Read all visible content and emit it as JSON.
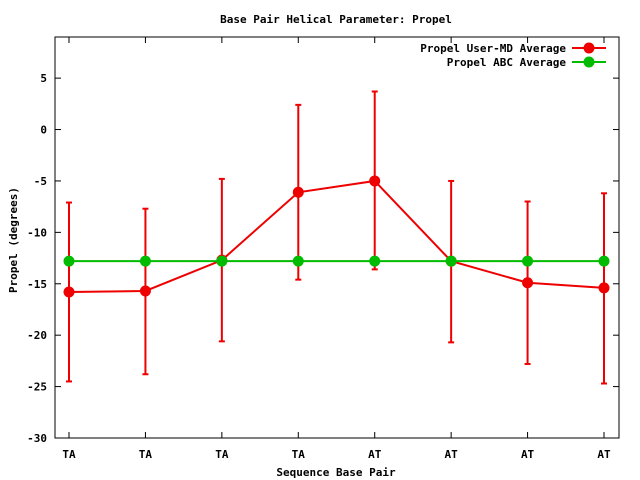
{
  "chart_data": {
    "type": "line",
    "title": "Base Pair Helical Parameter: Propel",
    "xlabel": "Sequence Base Pair",
    "ylabel": "Propel (degrees)",
    "categories": [
      "TA",
      "TA",
      "TA",
      "TA",
      "AT",
      "AT",
      "AT",
      "AT"
    ],
    "ylim": [
      -30,
      9
    ],
    "yticks": [
      5,
      0,
      -5,
      -10,
      -15,
      -20,
      -25,
      -30
    ],
    "grid": false,
    "legend_position": "top-right",
    "series": [
      {
        "name": "Propel User-MD Average",
        "color": "#ee0000",
        "values": [
          -15.8,
          -15.7,
          -12.7,
          -6.1,
          -5.0,
          -12.8,
          -14.9,
          -15.4
        ],
        "error_low": [
          -24.5,
          -23.8,
          -20.6,
          -14.6,
          -13.6,
          -20.7,
          -22.8,
          -24.7
        ],
        "error_high": [
          -7.1,
          -7.7,
          -4.8,
          2.4,
          3.7,
          -5.0,
          -7.0,
          -6.2
        ]
      },
      {
        "name": "Propel ABC Average",
        "color": "#00bb00",
        "values": [
          -12.8,
          -12.8,
          -12.8,
          -12.8,
          -12.8,
          -12.8,
          -12.8,
          -12.8
        ]
      }
    ]
  }
}
